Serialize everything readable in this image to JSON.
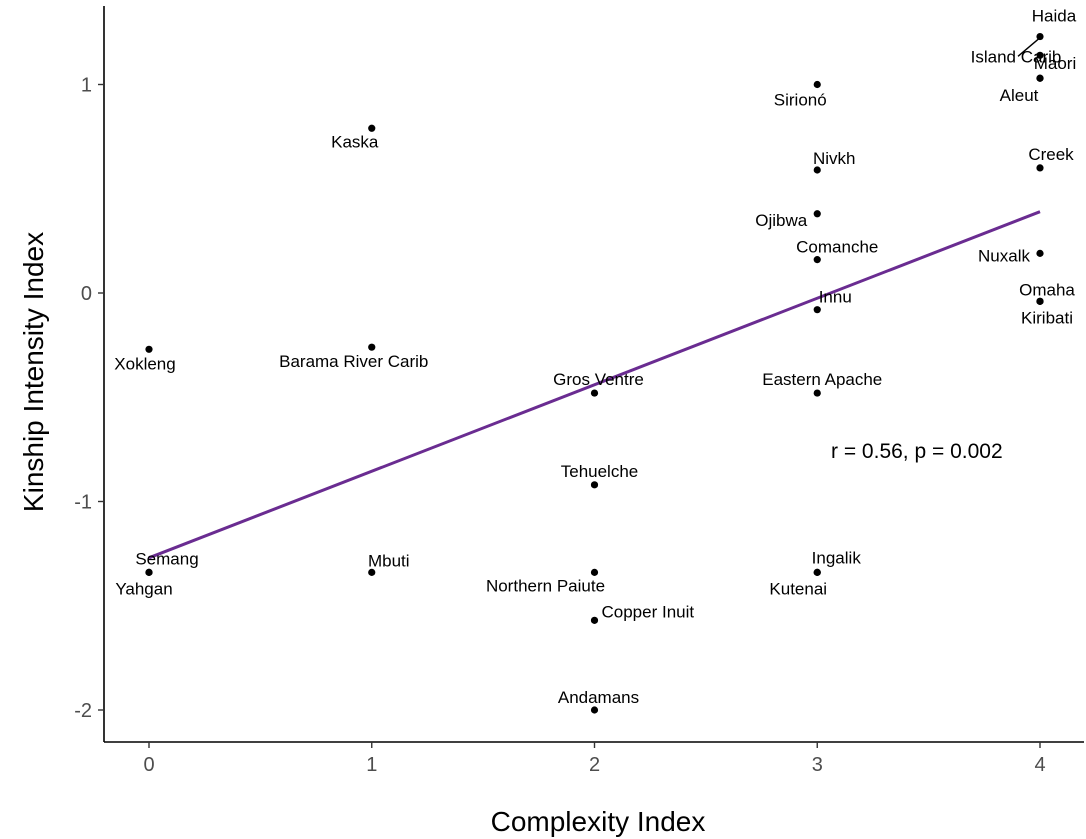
{
  "chart_data": {
    "type": "scatter",
    "xlabel": "Complexity Index",
    "ylabel": "Kinship Intensity Index",
    "xlim": [
      -0.2,
      4.2
    ],
    "ylim": [
      -2.15,
      1.4
    ],
    "x_ticks": [
      "0",
      "1",
      "2",
      "3",
      "4"
    ],
    "y_ticks": [
      "1",
      "0",
      "-1",
      "-2"
    ],
    "grid": false,
    "annotation": "r = 0.56, p = 0.002",
    "regression_line": {
      "x": [
        0,
        4
      ],
      "y": [
        -1.27,
        0.39
      ],
      "color": "#6a2c91"
    },
    "points": [
      {
        "name": "Haida",
        "x": 4,
        "y": 1.23
      },
      {
        "name": "Island Carib",
        "x": 4,
        "y": 1.14
      },
      {
        "name": "Maori",
        "x": 4,
        "y": 1.03
      },
      {
        "name": "Aleut",
        "x": 4,
        "y": 1.03
      },
      {
        "name": "Creek",
        "x": 4,
        "y": 0.6
      },
      {
        "name": "Nuxalk",
        "x": 4,
        "y": 0.19
      },
      {
        "name": "Omaha",
        "x": 4,
        "y": -0.04
      },
      {
        "name": "Kiribati",
        "x": 4,
        "y": -0.04
      },
      {
        "name": "Sirionó",
        "x": 3,
        "y": 1.0
      },
      {
        "name": "Nivkh",
        "x": 3,
        "y": 0.59
      },
      {
        "name": "Ojibwa",
        "x": 3,
        "y": 0.38
      },
      {
        "name": "Comanche",
        "x": 3,
        "y": 0.16
      },
      {
        "name": "Innu",
        "x": 3,
        "y": -0.08
      },
      {
        "name": "Eastern Apache",
        "x": 3,
        "y": -0.48
      },
      {
        "name": "Ingalik",
        "x": 3,
        "y": -1.34
      },
      {
        "name": "Kutenai",
        "x": 3,
        "y": -1.34
      },
      {
        "name": "Kaska",
        "x": 1,
        "y": 0.79
      },
      {
        "name": "Barama River Carib",
        "x": 1,
        "y": -0.26
      },
      {
        "name": "Mbuti",
        "x": 1,
        "y": -1.34
      },
      {
        "name": "Xokleng",
        "x": 0,
        "y": -0.27
      },
      {
        "name": "Semang",
        "x": 0,
        "y": -1.34
      },
      {
        "name": "Yahgan",
        "x": 0,
        "y": -1.34
      },
      {
        "name": "Gros Ventre",
        "x": 2,
        "y": -0.48
      },
      {
        "name": "Tehuelche",
        "x": 2,
        "y": -0.92
      },
      {
        "name": "Northern Paiute",
        "x": 2,
        "y": -1.34
      },
      {
        "name": "Copper Inuit",
        "x": 2,
        "y": -1.57
      },
      {
        "name": "Andamans",
        "x": 2,
        "y": -2.0
      }
    ]
  }
}
